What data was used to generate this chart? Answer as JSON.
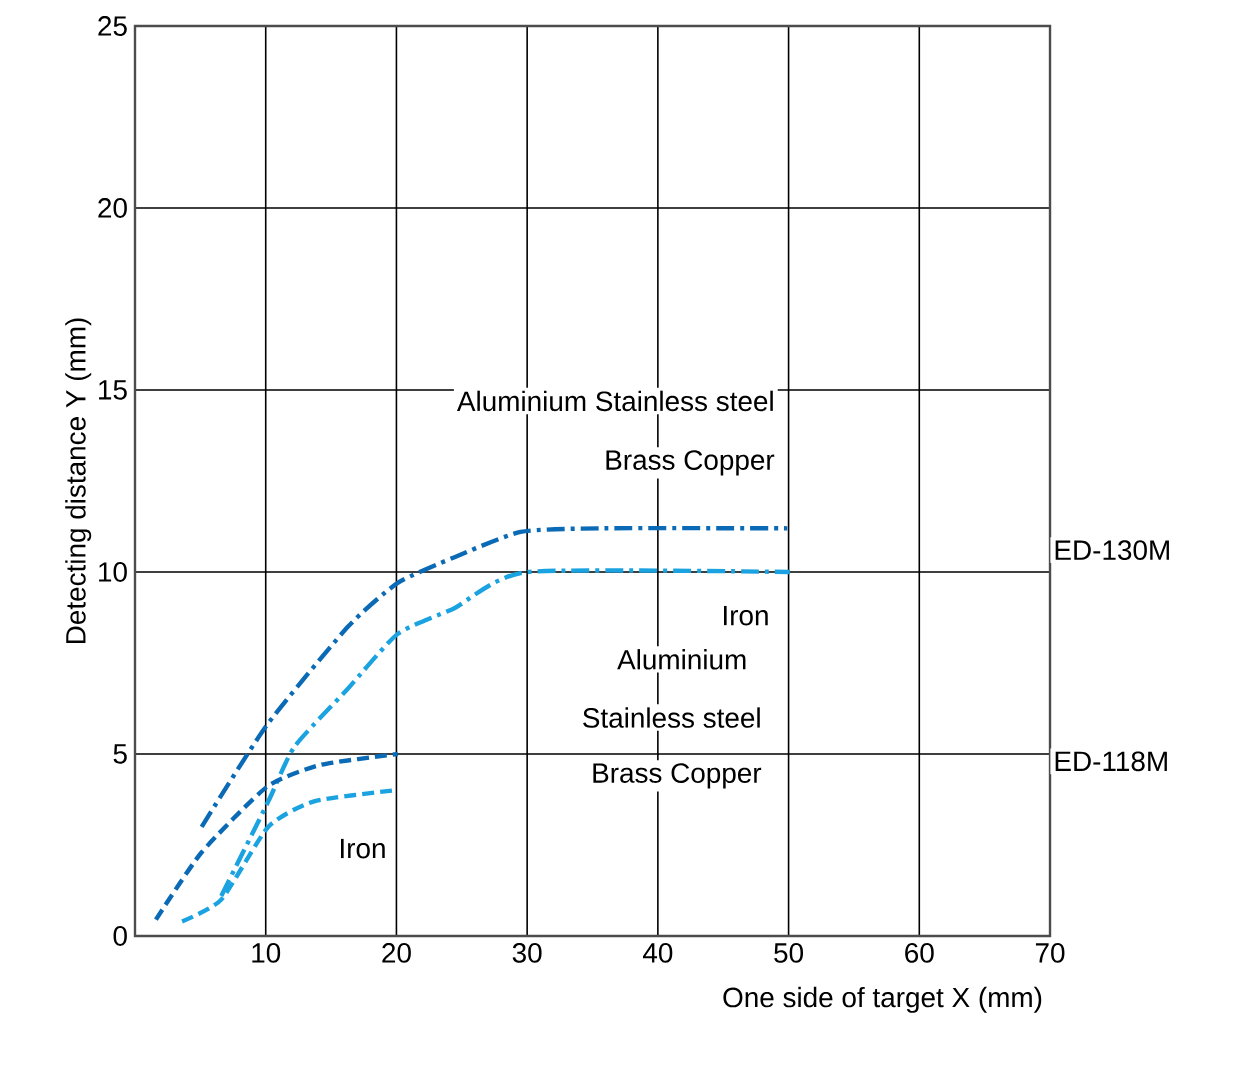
{
  "chart_data": {
    "type": "line",
    "xlabel": "One side of target X (mm)",
    "ylabel": "Detecting distance Y (mm)",
    "xlim": [
      0,
      70
    ],
    "ylim": [
      0,
      25
    ],
    "xticks": [
      10,
      20,
      30,
      40,
      50,
      60,
      70
    ],
    "yticks": [
      0,
      5,
      10,
      15,
      20,
      25
    ],
    "grid": true,
    "marker": "none",
    "series": [
      {
        "color": "#0a6ab5",
        "line_style": "dashdot",
        "x": [
          5.1,
          10.1,
          16.3,
          20.1,
          24.4,
          29.5,
          35.6,
          49.9
        ],
        "values": [
          3.0,
          5.8,
          8.5,
          9.7,
          10.4,
          11.1,
          11.2,
          11.2
        ]
      },
      {
        "color": "#1aa3e0",
        "line_style": "dashdot",
        "x": [
          6.6,
          10.2,
          12.2,
          16.3,
          20.1,
          24.4,
          30,
          50.1
        ],
        "values": [
          1.1,
          3.7,
          5.2,
          6.8,
          8.3,
          9.0,
          10.0,
          10.0
        ]
      },
      {
        "color": "#0a6ab5",
        "line_style": "dashed",
        "x": [
          1.6,
          5.1,
          10.1,
          14.2,
          20.1
        ],
        "values": [
          0.45,
          2.3,
          4.1,
          4.7,
          5.0
        ]
      },
      {
        "color": "#1aa3e0",
        "line_style": "dashed",
        "x": [
          3.6,
          6.6,
          10.2,
          13.7,
          19.8
        ],
        "values": [
          0.4,
          1.0,
          3.0,
          3.7,
          4.0
        ]
      }
    ],
    "annotations": [
      "Aluminium Stainless steel",
      "Brass Copper",
      "Iron",
      "Aluminium",
      "Stainless steel",
      "Brass Copper",
      "Iron",
      "ED-130M",
      "ED-118M"
    ]
  }
}
